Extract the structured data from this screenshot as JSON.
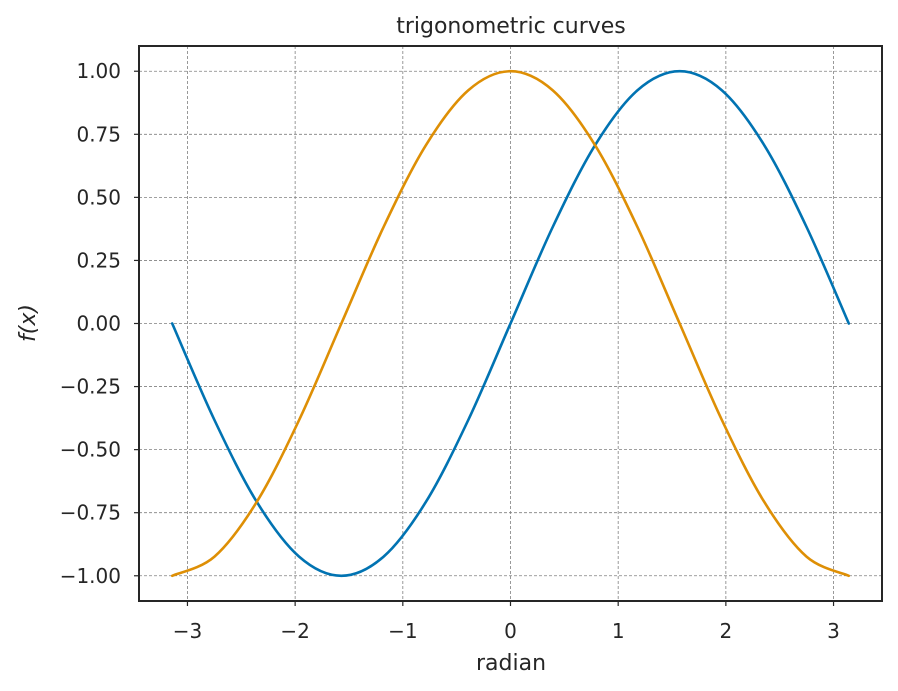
{
  "chart_data": {
    "type": "line",
    "title": "trigonometric curves",
    "xlabel": "radian",
    "ylabel": "f(x)",
    "xlim": [
      -3.45,
      3.45
    ],
    "ylim": [
      -1.1,
      1.1
    ],
    "x_ticks": [
      -3,
      -2,
      -1,
      0,
      1,
      2,
      3
    ],
    "x_tick_labels": [
      "−3",
      "−2",
      "−1",
      "0",
      "1",
      "2",
      "3"
    ],
    "y_ticks": [
      -1.0,
      -0.75,
      -0.5,
      -0.25,
      0.0,
      0.25,
      0.5,
      0.75,
      1.0
    ],
    "y_tick_labels": [
      "−1.00",
      "−0.75",
      "−0.50",
      "−0.25",
      "0.00",
      "0.25",
      "0.50",
      "0.75",
      "1.00"
    ],
    "grid": true,
    "legend": "none",
    "x": [
      -3.1416,
      -2.7489,
      -2.3562,
      -1.9635,
      -1.5708,
      -1.1781,
      -0.7854,
      -0.3927,
      0.0,
      0.3927,
      0.7854,
      1.1781,
      1.5708,
      1.9635,
      2.3562,
      2.7489,
      3.1416
    ],
    "series": [
      {
        "color": "#0173b2",
        "values": [
          0.0,
          -0.383,
          -0.707,
          -0.924,
          -1.0,
          -0.924,
          -0.707,
          -0.383,
          0.0,
          0.383,
          0.707,
          0.924,
          1.0,
          0.924,
          0.707,
          0.383,
          0.0
        ]
      },
      {
        "color": "#de8f05",
        "values": [
          -1.0,
          -0.924,
          -0.707,
          -0.383,
          0.0,
          0.383,
          0.707,
          0.924,
          1.0,
          0.924,
          0.707,
          0.383,
          0.0,
          -0.383,
          -0.707,
          -0.924,
          -1.0
        ]
      }
    ]
  }
}
